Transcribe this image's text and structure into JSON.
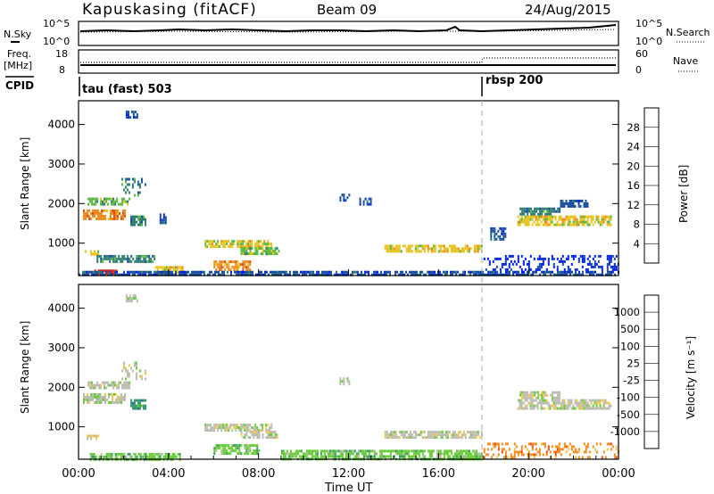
{
  "header": {
    "station": "Kapuskasing (fitACF)",
    "beam": "Beam 09",
    "date": "24/Aug/2015"
  },
  "noise_panel": {
    "left_label": "N.Sky",
    "right_label": "N.Search",
    "ticks_left": [
      "10^5",
      "10^0"
    ],
    "ticks_right": [
      "10^5",
      "10^0"
    ]
  },
  "freq_panel": {
    "left_label": "Freq.",
    "left_unit": "[MHz]",
    "right_label": "Nave",
    "ticks_left": [
      "18",
      "8"
    ],
    "ticks_right": [
      "60",
      "0"
    ]
  },
  "cpid": {
    "label": "CPID",
    "programs": [
      {
        "name": "tau (fast) 503",
        "start_hour": 0
      },
      {
        "name": "rbsp 200",
        "start_hour": 18
      }
    ]
  },
  "x_axis": {
    "label": "Time UT",
    "ticks": [
      "00:00",
      "04:00",
      "08:00",
      "12:00",
      "16:00",
      "20:00",
      "00:00"
    ]
  },
  "chart_data": [
    {
      "type": "heatmap",
      "title": "Power",
      "ylabel": "Slant Range [km]",
      "xlabel": "Time UT",
      "xlim": [
        0,
        24
      ],
      "ylim": [
        180,
        4600
      ],
      "yticks": [
        "1000",
        "2000",
        "3000",
        "4000"
      ],
      "colorbar": {
        "label": "Power [dB]",
        "ticks": [
          "4",
          "8",
          "12",
          "16",
          "20",
          "24",
          "28"
        ],
        "colors": [
          "#0022dd",
          "#1a4fa0",
          "#2e7d6e",
          "#58b840",
          "#e6c21a",
          "#ee8a1a",
          "#e44a14",
          "#dd1111"
        ]
      },
      "patches": [
        {
          "t0": 0.2,
          "t1": 2.1,
          "r0": 1600,
          "r1": 1850,
          "level": 5
        },
        {
          "t0": 0.4,
          "t1": 2.3,
          "r0": 1950,
          "r1": 2150,
          "level": 3
        },
        {
          "t0": 1.9,
          "t1": 3.0,
          "r0": 2200,
          "r1": 2650,
          "level": 2
        },
        {
          "t0": 2.1,
          "t1": 2.6,
          "r0": 4150,
          "r1": 4350,
          "level": 1
        },
        {
          "t0": 0.2,
          "t1": 0.9,
          "r0": 720,
          "r1": 820,
          "level": 4
        },
        {
          "t0": 0.7,
          "t1": 1.7,
          "r0": 200,
          "r1": 330,
          "level": 7
        },
        {
          "t0": 0.8,
          "t1": 3.4,
          "r0": 520,
          "r1": 700,
          "level": 2
        },
        {
          "t0": 2.3,
          "t1": 3.0,
          "r0": 1450,
          "r1": 1700,
          "level": 2
        },
        {
          "t0": 3.6,
          "t1": 3.9,
          "r0": 1500,
          "r1": 1750,
          "level": 1
        },
        {
          "t0": 5.6,
          "t1": 8.6,
          "r0": 920,
          "r1": 1080,
          "level": 4
        },
        {
          "t0": 6.0,
          "t1": 7.6,
          "r0": 300,
          "r1": 560,
          "level": 5
        },
        {
          "t0": 7.2,
          "t1": 8.9,
          "r0": 750,
          "r1": 900,
          "level": 3
        },
        {
          "t0": 3.4,
          "t1": 4.6,
          "r0": 230,
          "r1": 420,
          "level": 4
        },
        {
          "t0": 11.6,
          "t1": 12.0,
          "r0": 2050,
          "r1": 2250,
          "level": 1
        },
        {
          "t0": 12.4,
          "t1": 13.0,
          "r0": 1950,
          "r1": 2150,
          "level": 1
        },
        {
          "t0": 13.6,
          "t1": 17.9,
          "r0": 760,
          "r1": 960,
          "level": 4
        },
        {
          "t0": 18.3,
          "t1": 19.0,
          "r0": 1100,
          "r1": 1400,
          "level": 1
        },
        {
          "t0": 19.5,
          "t1": 23.7,
          "r0": 1450,
          "r1": 1700,
          "level": 4
        },
        {
          "t0": 19.6,
          "t1": 21.4,
          "r0": 1700,
          "r1": 1900,
          "level": 2
        },
        {
          "t0": 21.4,
          "t1": 22.6,
          "r0": 1900,
          "r1": 2100,
          "level": 1
        },
        {
          "t0": 0.0,
          "t1": 24.0,
          "r0": 180,
          "r1": 300,
          "level": 1
        },
        {
          "t0": 18.0,
          "t1": 24.0,
          "r0": 300,
          "r1": 700,
          "level": 0
        }
      ]
    },
    {
      "type": "heatmap",
      "title": "Velocity",
      "ylabel": "Slant Range [km]",
      "xlabel": "Time UT",
      "xlim": [
        0,
        24
      ],
      "ylim": [
        180,
        4600
      ],
      "yticks": [
        "1000",
        "2000",
        "3000",
        "4000"
      ],
      "colorbar": {
        "label": "Velocity [m s⁻¹]",
        "ticks": [
          "1000",
          "500",
          "100",
          "25",
          "-25",
          "-100",
          "-500",
          "-1000"
        ],
        "colors": [
          "#1a2fb0",
          "#2a6fa8",
          "#3a9a6a",
          "#66cc33",
          "#bbbbb0",
          "#f2c94c",
          "#f08a1a",
          "#ea4a14",
          "#dd1111"
        ]
      },
      "patches": [
        {
          "t0": 0.2,
          "t1": 2.1,
          "r0": 1600,
          "r1": 1850,
          "level": 4
        },
        {
          "t0": 0.4,
          "t1": 2.3,
          "r0": 1950,
          "r1": 2150,
          "level": 4
        },
        {
          "t0": 1.9,
          "t1": 3.0,
          "r0": 2200,
          "r1": 2650,
          "level": 4
        },
        {
          "t0": 2.1,
          "t1": 2.6,
          "r0": 4150,
          "r1": 4350,
          "level": 4
        },
        {
          "t0": 0.2,
          "t1": 0.9,
          "r0": 680,
          "r1": 800,
          "level": 5
        },
        {
          "t0": 0.5,
          "t1": 4.5,
          "r0": 200,
          "r1": 340,
          "level": 3
        },
        {
          "t0": 2.3,
          "t1": 3.0,
          "r0": 1450,
          "r1": 1700,
          "level": 2
        },
        {
          "t0": 5.6,
          "t1": 8.6,
          "r0": 920,
          "r1": 1080,
          "level": 4
        },
        {
          "t0": 6.0,
          "t1": 8.0,
          "r0": 300,
          "r1": 560,
          "level": 3
        },
        {
          "t0": 7.2,
          "t1": 8.9,
          "r0": 750,
          "r1": 900,
          "level": 4
        },
        {
          "t0": 9.0,
          "t1": 17.9,
          "r0": 200,
          "r1": 420,
          "level": 3
        },
        {
          "t0": 11.6,
          "t1": 12.0,
          "r0": 2050,
          "r1": 2250,
          "level": 4
        },
        {
          "t0": 13.6,
          "t1": 17.9,
          "r0": 760,
          "r1": 900,
          "level": 4
        },
        {
          "t0": 19.5,
          "t1": 23.7,
          "r0": 1450,
          "r1": 1700,
          "level": 4
        },
        {
          "t0": 19.6,
          "t1": 21.4,
          "r0": 1700,
          "r1": 1900,
          "level": 4
        },
        {
          "t0": 18.0,
          "t1": 24.0,
          "r0": 200,
          "r1": 600,
          "level": 6
        }
      ]
    }
  ]
}
